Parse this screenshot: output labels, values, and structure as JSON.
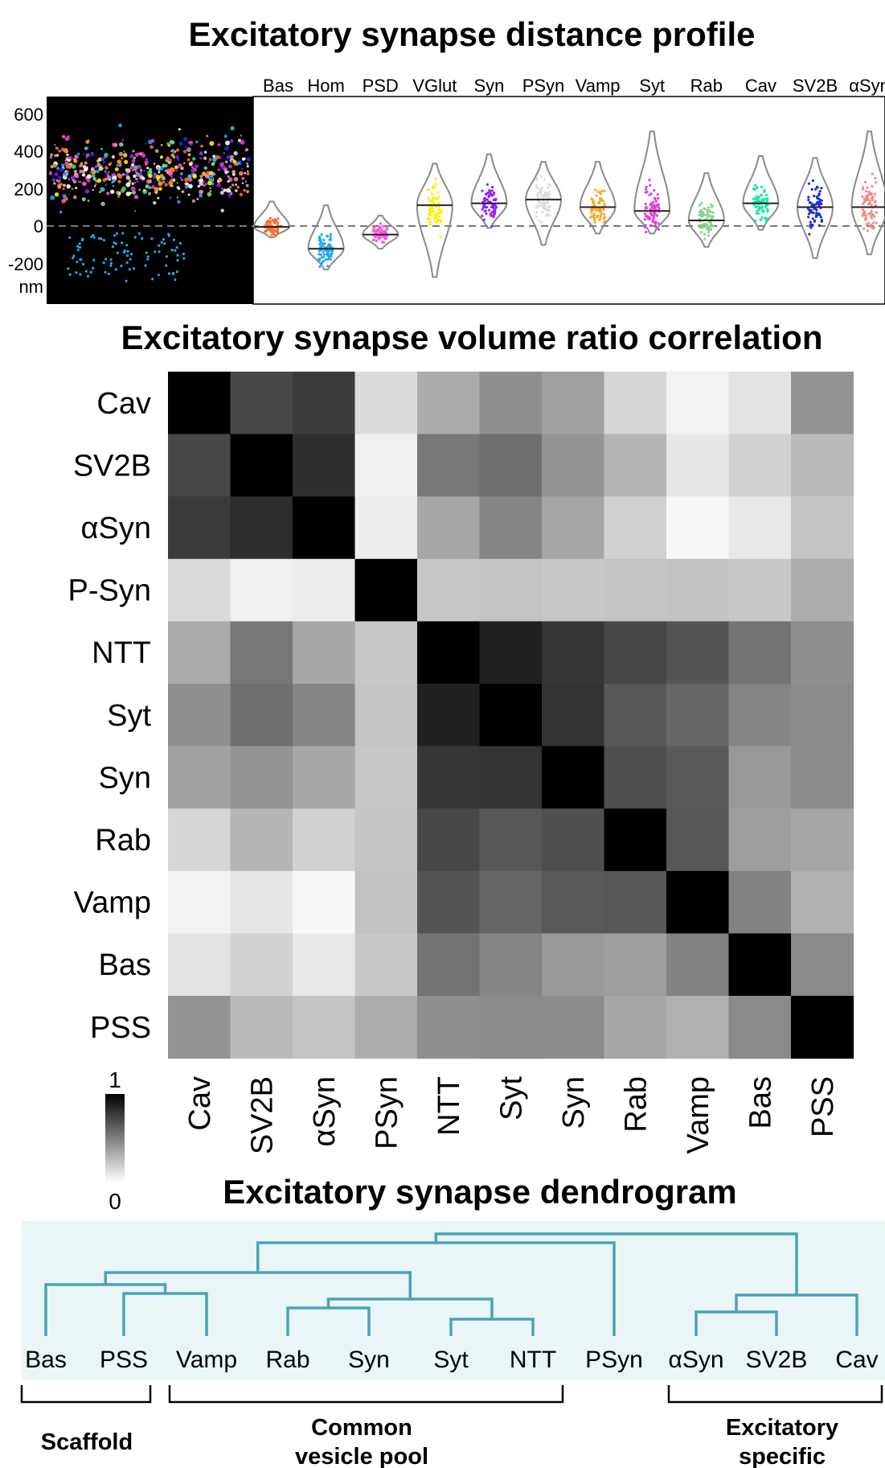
{
  "panel1": {
    "title": "Excitatory synapse distance profile",
    "y_ticks": [
      "600",
      "400",
      "200",
      "0",
      "-200"
    ],
    "y_unit": "nm",
    "chart_data": {
      "type": "violin",
      "title": "Excitatory synapse distance profile",
      "ylabel": "nm",
      "ylim": [
        -250,
        600
      ],
      "series": [
        {
          "label": "Bas",
          "median": -5,
          "min": -60,
          "max": 130,
          "color": "#ff6a2a"
        },
        {
          "label": "Hom",
          "median": -120,
          "min": -230,
          "max": 110,
          "color": "#1fa8f0"
        },
        {
          "label": "PSD",
          "median": -45,
          "min": -120,
          "max": 55,
          "color": "#ff55dd"
        },
        {
          "label": "VGlut",
          "median": 110,
          "min": -270,
          "max": 330,
          "color": "#ffee00"
        },
        {
          "label": "Syn",
          "median": 120,
          "min": -10,
          "max": 380,
          "color": "#9a1bff"
        },
        {
          "label": "PSyn",
          "median": 140,
          "min": -100,
          "max": 340,
          "color": "#dcdcdc"
        },
        {
          "label": "Vamp",
          "median": 100,
          "min": -40,
          "max": 340,
          "color": "#ffa51f"
        },
        {
          "label": "Syt",
          "median": 80,
          "min": -40,
          "max": 500,
          "color": "#e23ce6"
        },
        {
          "label": "Rab",
          "median": 30,
          "min": -110,
          "max": 280,
          "color": "#8fd18f"
        },
        {
          "label": "Cav",
          "median": 120,
          "min": -20,
          "max": 370,
          "color": "#13eaa0"
        },
        {
          "label": "SV2B",
          "median": 100,
          "min": -170,
          "max": 360,
          "color": "#1a2ee6"
        },
        {
          "label": "αSyn",
          "median": 100,
          "min": -150,
          "max": 500,
          "color": "#f28b8b"
        }
      ]
    }
  },
  "panel2": {
    "title": "Excitatory synapse volume ratio correlation",
    "colorbar": {
      "max_label": "1",
      "min_label": "0"
    },
    "chart_data": {
      "type": "heatmap",
      "title": "Excitatory synapse volume ratio correlation",
      "row_labels": [
        "Cav",
        "SV2B",
        "αSyn",
        "P-Syn",
        "NTT",
        "Syt",
        "Syn",
        "Rab",
        "Vamp",
        "Bas",
        "PSS"
      ],
      "col_labels": [
        "Cav",
        "SV2B",
        "αSyn",
        "PSyn",
        "NTT",
        "Syt",
        "Syn",
        "Rab",
        "Vamp",
        "Bas",
        "PSS"
      ],
      "range": [
        0,
        1
      ],
      "values": [
        [
          1.0,
          0.72,
          0.77,
          0.14,
          0.33,
          0.44,
          0.37,
          0.16,
          0.05,
          0.11,
          0.42
        ],
        [
          0.72,
          1.0,
          0.82,
          0.06,
          0.53,
          0.56,
          0.42,
          0.29,
          0.1,
          0.18,
          0.27
        ],
        [
          0.77,
          0.82,
          1.0,
          0.07,
          0.35,
          0.48,
          0.35,
          0.18,
          0.03,
          0.09,
          0.23
        ],
        [
          0.14,
          0.06,
          0.07,
          1.0,
          0.22,
          0.23,
          0.22,
          0.23,
          0.24,
          0.22,
          0.32
        ],
        [
          0.33,
          0.53,
          0.35,
          0.22,
          1.0,
          0.87,
          0.79,
          0.72,
          0.67,
          0.55,
          0.44
        ],
        [
          0.44,
          0.56,
          0.48,
          0.23,
          0.87,
          1.0,
          0.8,
          0.66,
          0.6,
          0.48,
          0.46
        ],
        [
          0.37,
          0.42,
          0.35,
          0.22,
          0.79,
          0.8,
          1.0,
          0.69,
          0.65,
          0.4,
          0.45
        ],
        [
          0.16,
          0.29,
          0.18,
          0.23,
          0.72,
          0.66,
          0.69,
          1.0,
          0.66,
          0.38,
          0.35
        ],
        [
          0.05,
          0.1,
          0.03,
          0.24,
          0.67,
          0.6,
          0.65,
          0.66,
          1.0,
          0.49,
          0.31
        ],
        [
          0.11,
          0.18,
          0.09,
          0.22,
          0.55,
          0.48,
          0.4,
          0.38,
          0.49,
          1.0,
          0.46
        ],
        [
          0.42,
          0.27,
          0.23,
          0.32,
          0.44,
          0.46,
          0.45,
          0.35,
          0.31,
          0.46,
          1.0
        ]
      ]
    }
  },
  "panel3": {
    "title": "Excitatory synapse dendrogram",
    "leaves": [
      "Bas",
      "PSS",
      "Vamp",
      "Rab",
      "Syn",
      "Syt",
      "NTT",
      "PSyn",
      "αSyn",
      "SV2B",
      "Cav"
    ],
    "groups": [
      {
        "line1": "Scaffold",
        "line2": ""
      },
      {
        "line1": "Common",
        "line2": "vesicle pool"
      },
      {
        "line1": "Excitatory",
        "line2": "specific"
      }
    ],
    "colors": {
      "link": "#4aa3b8",
      "background": "#eaf5f8"
    }
  }
}
